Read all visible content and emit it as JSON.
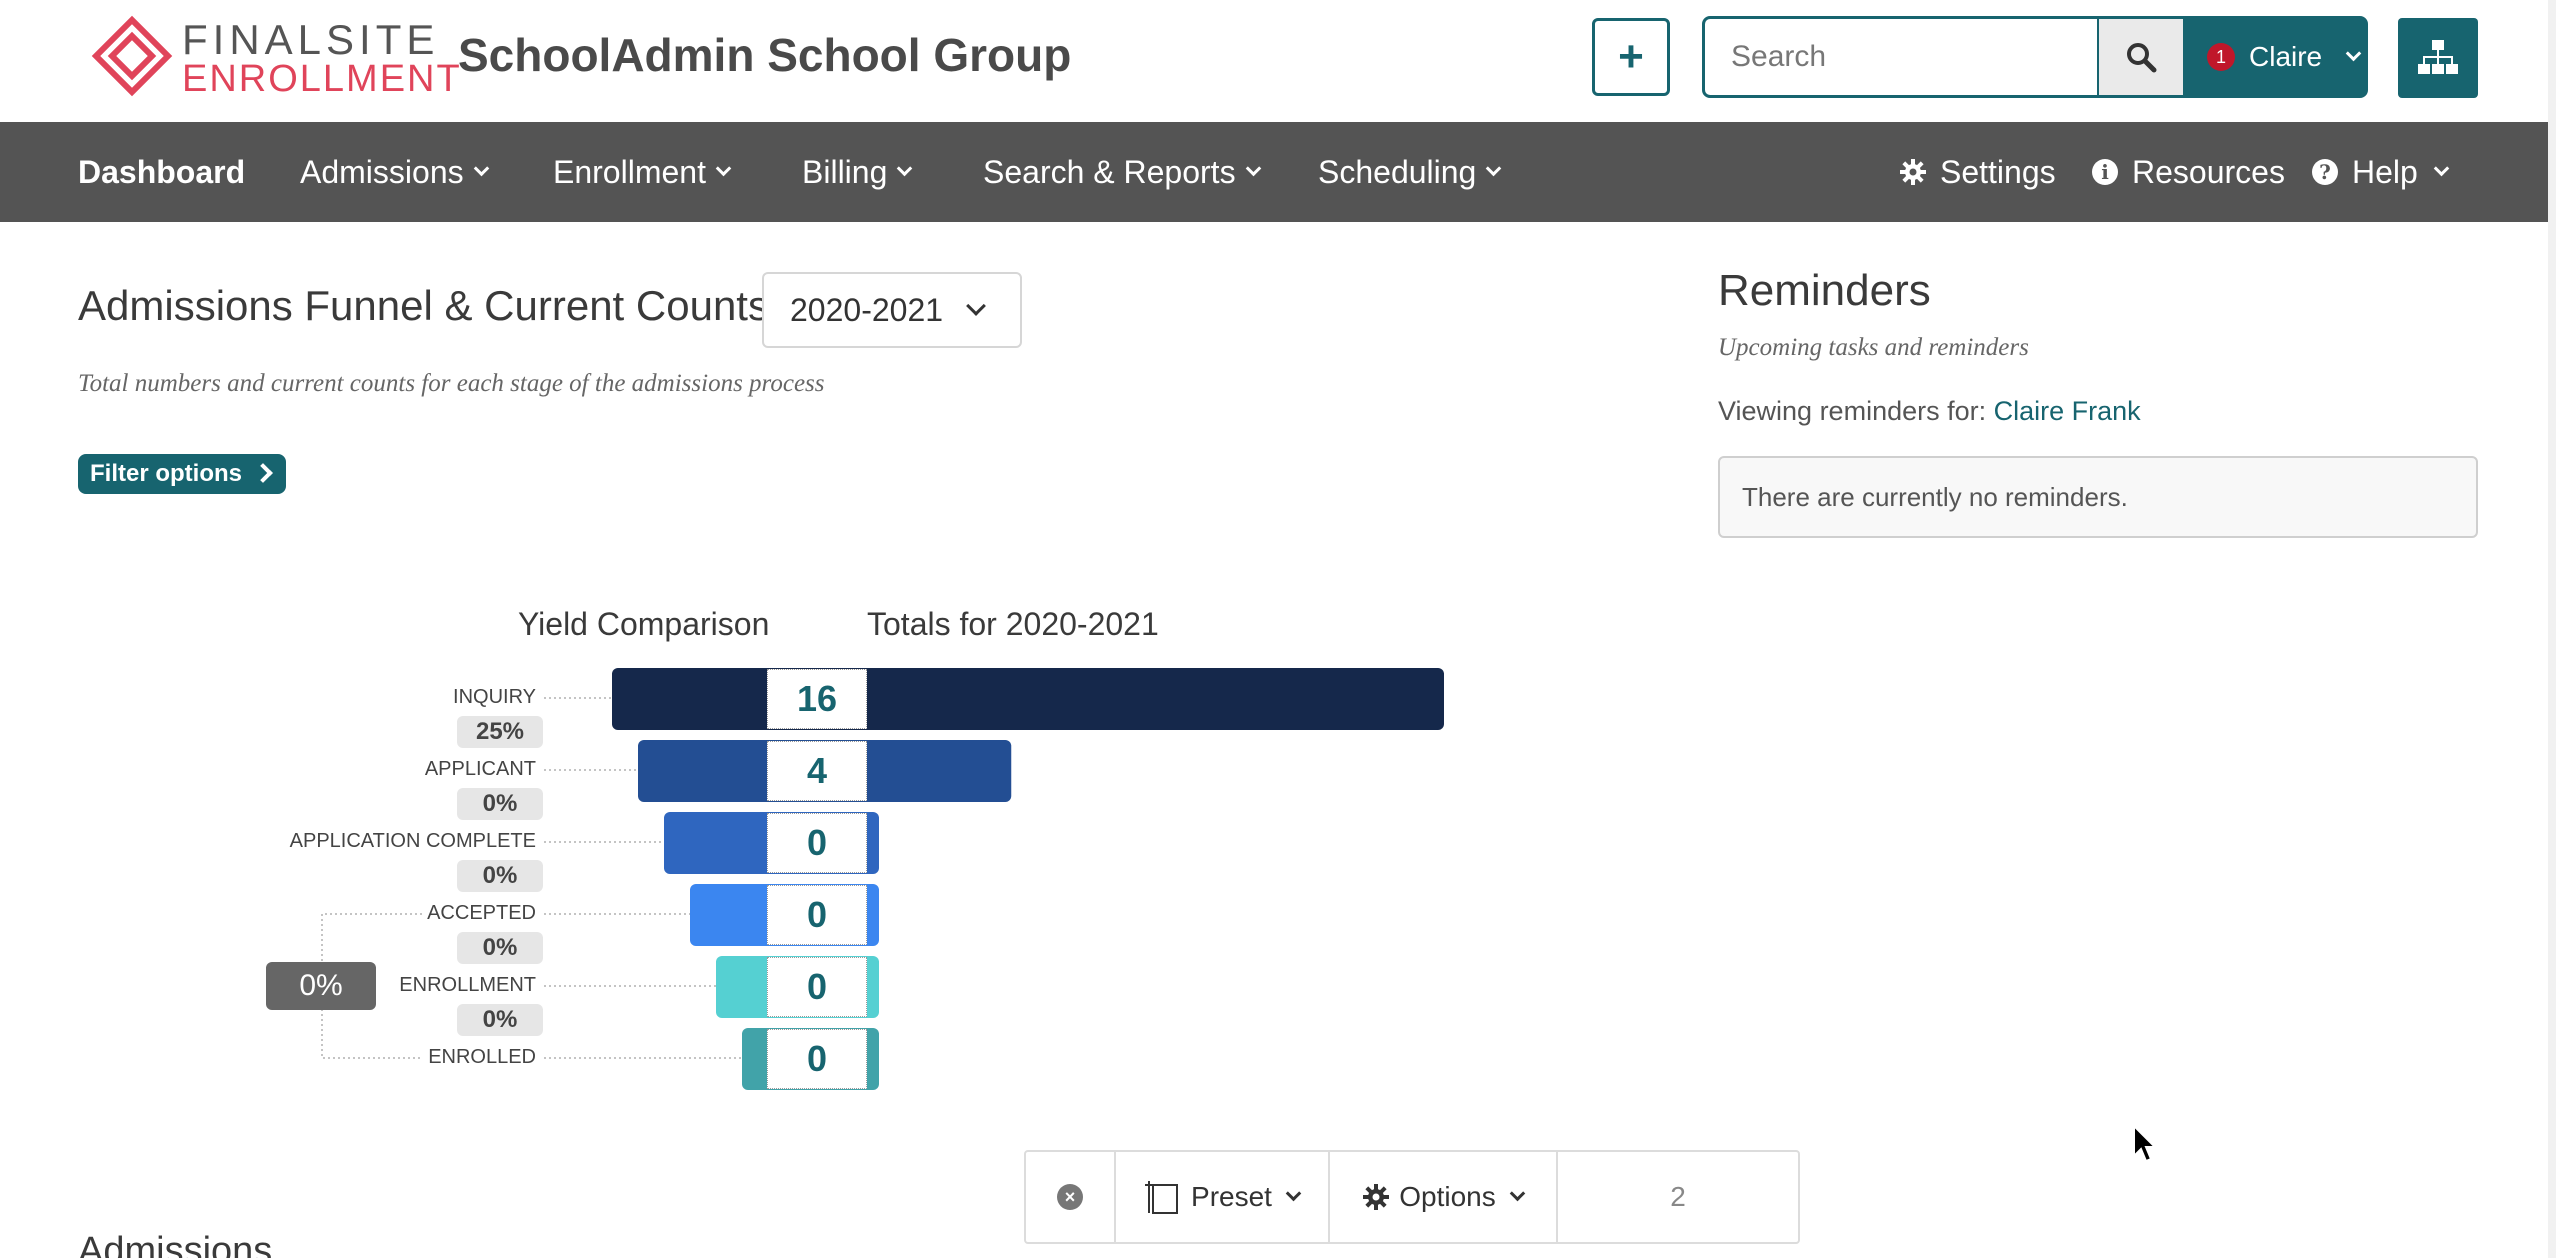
{
  "header": {
    "logo_line1": "FINALSITE",
    "logo_line2": "ENROLLMENT",
    "school_name": "SchoolAdmin School Group",
    "search_placeholder": "Search",
    "notification_count": "1",
    "user_name": "Claire",
    "icons": {
      "add": "plus-icon",
      "search": "search-icon",
      "sitemap": "sitemap-icon"
    }
  },
  "nav": {
    "items": [
      {
        "label": "Dashboard"
      },
      {
        "label": "Admissions"
      },
      {
        "label": "Enrollment"
      },
      {
        "label": "Billing"
      },
      {
        "label": "Search & Reports"
      },
      {
        "label": "Scheduling"
      }
    ],
    "right": [
      {
        "label": "Settings",
        "icon": "gear-icon"
      },
      {
        "label": "Resources",
        "icon": "info-icon"
      },
      {
        "label": "Help",
        "icon": "question-icon"
      }
    ]
  },
  "funnel": {
    "title": "Admissions Funnel & Current Counts",
    "year": "2020-2021",
    "subtitle": "Total numbers and current counts for each stage of the admissions process",
    "filter_label": "Filter options",
    "yield_header": "Yield Comparison",
    "totals_header": "Totals for 2020-2021",
    "total_yield": "0%"
  },
  "chart_data": {
    "type": "bar",
    "title": "Totals for 2020-2021",
    "categories": [
      "INQUIRY",
      "APPLICANT",
      "APPLICATION COMPLETE",
      "ACCEPTED",
      "ENROLLMENT",
      "ENROLLED"
    ],
    "values": [
      16,
      4,
      0,
      0,
      0,
      0
    ],
    "yield_percentages": [
      "25%",
      "0%",
      "0%",
      "0%",
      "0%"
    ],
    "colors": [
      "#15284b",
      "#234e93",
      "#2f66bf",
      "#3b86f0",
      "#55d0d2",
      "#41a3a9"
    ]
  },
  "reminders": {
    "title": "Reminders",
    "subtitle": "Upcoming tasks and reminders",
    "viewing_label": "Viewing reminders for:",
    "viewing_user": "Claire Frank",
    "empty_message": "There are currently no reminders."
  },
  "toolbar": {
    "preset_label": "Preset",
    "options_label": "Options",
    "count": "2"
  },
  "section_heading": "Admissions",
  "colors": {
    "brand_teal": "#17646f",
    "nav_bg": "#545454",
    "logo_red": "#e0445a",
    "badge_red": "#c0172a"
  }
}
